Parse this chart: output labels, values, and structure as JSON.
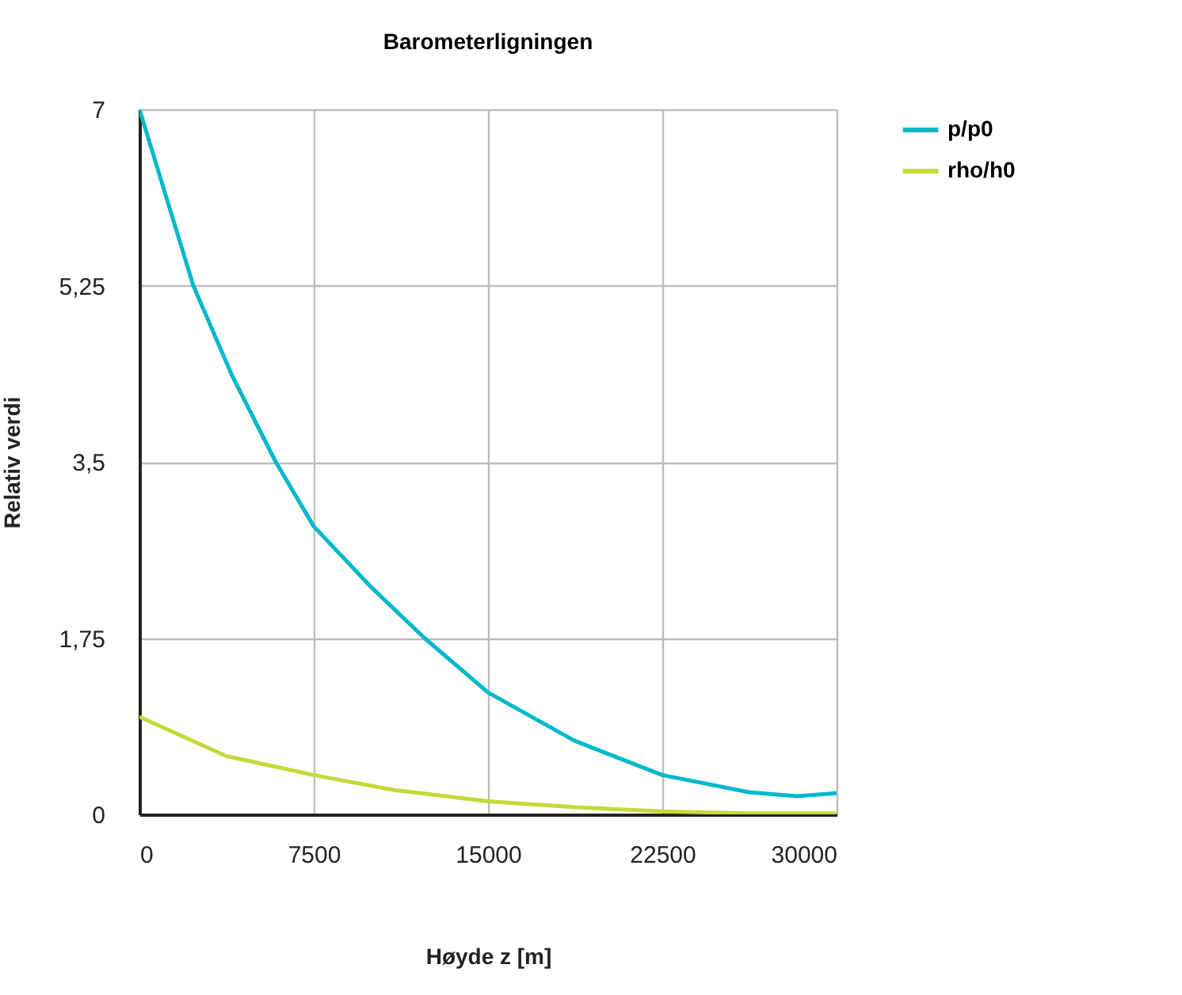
{
  "chart_data": {
    "type": "line",
    "title": "Barometerligningen",
    "xlabel": "Høyde z [m]",
    "ylabel": "Relativ verdi",
    "xlim": [
      0,
      30000
    ],
    "xticks": [
      0,
      7500,
      15000,
      22500,
      30000
    ],
    "ylim": [
      0,
      7
    ],
    "yticks": [
      0,
      {
        "value": 1.75,
        "label": "1,75"
      },
      {
        "value": 3.5,
        "label": "3,5"
      },
      {
        "value": 5.25,
        "label": "5,25"
      },
      7
    ],
    "grid": true,
    "legend": "top right",
    "series": [
      {
        "name": "p/p0",
        "color": "#00b8cc",
        "x": [
          0,
          2318,
          4000,
          5864,
          7500,
          10000,
          12270,
          15000,
          18730,
          22500,
          26230,
          28275,
          30000
        ],
        "values": [
          7,
          5.25,
          4.35,
          3.5,
          2.86,
          2.25,
          1.75,
          1.21,
          0.73,
          0.39,
          0.22,
          0.18,
          0.21
        ]
      },
      {
        "name": "rho/h0",
        "color": "#c5d93a",
        "x": [
          0,
          3727,
          7500,
          11000,
          15000,
          18750,
          22500,
          26250,
          30000
        ],
        "values": [
          0.97,
          0.58,
          0.39,
          0.24,
          0.13,
          0.07,
          0.03,
          0.01,
          0.01
        ]
      }
    ]
  }
}
